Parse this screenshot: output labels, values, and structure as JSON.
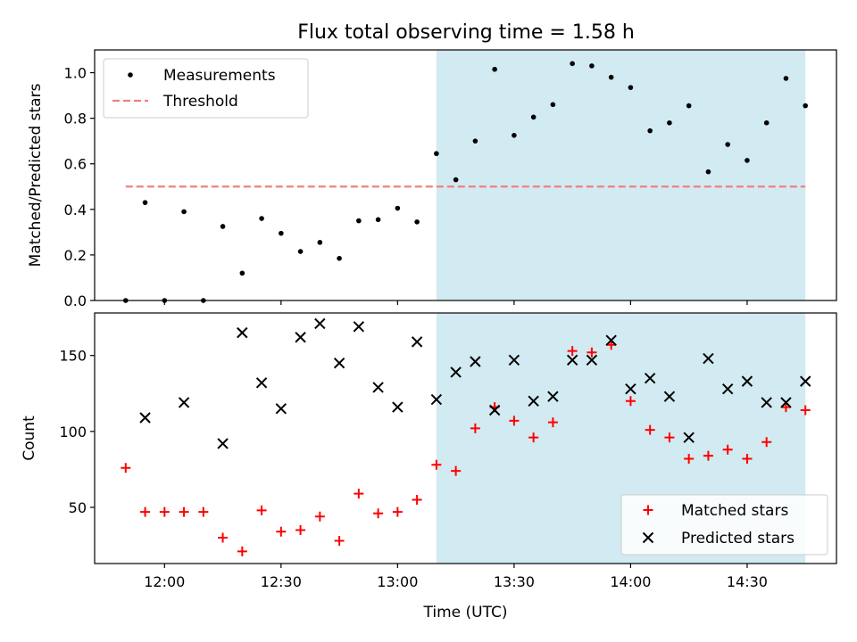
{
  "chart_data": [
    {
      "type": "scatter",
      "title": "Flux total observing time = 1.58 h",
      "xlabel": "",
      "ylabel": "Matched/Predicted stars",
      "ylim": [
        0,
        1.1
      ],
      "yticks": [
        0.0,
        0.2,
        0.4,
        0.6,
        0.8,
        1.0
      ],
      "ytick_labels": [
        "0.0",
        "0.2",
        "0.4",
        "0.6",
        "0.8",
        "1.0"
      ],
      "grid": false,
      "legend": "upper-left",
      "shaded_span": {
        "from": "13:10",
        "to": "14:45",
        "color": "#add8e6"
      },
      "threshold": {
        "name": "Threshold",
        "value": 0.5,
        "from": "11:50",
        "to": "14:45",
        "color": "#f08080",
        "style": "dashed"
      },
      "series": [
        {
          "name": "Measurements",
          "marker": "dot",
          "color": "#000000",
          "points": [
            [
              "11:50",
              0.0
            ],
            [
              "11:55",
              0.43
            ],
            [
              "12:00",
              0.0
            ],
            [
              "12:05",
              0.39
            ],
            [
              "12:10",
              0.0
            ],
            [
              "12:15",
              0.325
            ],
            [
              "12:20",
              0.12
            ],
            [
              "12:25",
              0.36
            ],
            [
              "12:30",
              0.295
            ],
            [
              "12:35",
              0.215
            ],
            [
              "12:40",
              0.255
            ],
            [
              "12:45",
              0.185
            ],
            [
              "12:50",
              0.35
            ],
            [
              "12:55",
              0.355
            ],
            [
              "13:00",
              0.405
            ],
            [
              "13:05",
              0.345
            ],
            [
              "13:10",
              0.645
            ],
            [
              "13:15",
              0.53
            ],
            [
              "13:20",
              0.7
            ],
            [
              "13:25",
              1.015
            ],
            [
              "13:30",
              0.725
            ],
            [
              "13:35",
              0.805
            ],
            [
              "13:40",
              0.86
            ],
            [
              "13:45",
              1.04
            ],
            [
              "13:50",
              1.03
            ],
            [
              "13:55",
              0.98
            ],
            [
              "14:00",
              0.935
            ],
            [
              "14:05",
              0.745
            ],
            [
              "14:10",
              0.78
            ],
            [
              "14:15",
              0.855
            ],
            [
              "14:20",
              0.565
            ],
            [
              "14:25",
              0.685
            ],
            [
              "14:30",
              0.615
            ],
            [
              "14:35",
              0.78
            ],
            [
              "14:40",
              0.975
            ],
            [
              "14:45",
              0.855
            ]
          ]
        }
      ]
    },
    {
      "type": "scatter",
      "title": "",
      "xlabel": "Time (UTC)",
      "ylabel": "Count",
      "ylim": [
        13,
        178
      ],
      "yticks": [
        50,
        100,
        150
      ],
      "ytick_labels": [
        "50",
        "100",
        "150"
      ],
      "xlim": [
        "11:42",
        "14:53"
      ],
      "xticks": [
        "12:00",
        "12:30",
        "13:00",
        "13:30",
        "14:00",
        "14:30"
      ],
      "xtick_labels": [
        "12:00",
        "12:30",
        "13:00",
        "13:30",
        "14:00",
        "14:30"
      ],
      "grid": false,
      "legend": "lower-right",
      "shaded_span": {
        "from": "13:10",
        "to": "14:45",
        "color": "#add8e6"
      },
      "series": [
        {
          "name": "Matched stars",
          "marker": "plus",
          "color": "#ff0000",
          "points": [
            [
              "11:50",
              76
            ],
            [
              "11:55",
              47
            ],
            [
              "12:00",
              47
            ],
            [
              "12:05",
              47
            ],
            [
              "12:10",
              47
            ],
            [
              "12:15",
              30
            ],
            [
              "12:20",
              21
            ],
            [
              "12:25",
              48
            ],
            [
              "12:30",
              34
            ],
            [
              "12:35",
              35
            ],
            [
              "12:40",
              44
            ],
            [
              "12:45",
              28
            ],
            [
              "12:50",
              59
            ],
            [
              "12:55",
              46
            ],
            [
              "13:00",
              47
            ],
            [
              "13:05",
              55
            ],
            [
              "13:10",
              78
            ],
            [
              "13:15",
              74
            ],
            [
              "13:20",
              102
            ],
            [
              "13:25",
              116
            ],
            [
              "13:30",
              107
            ],
            [
              "13:35",
              96
            ],
            [
              "13:40",
              106
            ],
            [
              "13:45",
              153
            ],
            [
              "13:50",
              152
            ],
            [
              "13:55",
              157
            ],
            [
              "14:00",
              120
            ],
            [
              "14:05",
              101
            ],
            [
              "14:10",
              96
            ],
            [
              "14:15",
              82
            ],
            [
              "14:20",
              84
            ],
            [
              "14:25",
              88
            ],
            [
              "14:30",
              82
            ],
            [
              "14:35",
              93
            ],
            [
              "14:40",
              116
            ],
            [
              "14:45",
              114
            ]
          ]
        },
        {
          "name": "Predicted stars",
          "marker": "x",
          "color": "#000000",
          "points": [
            [
              "11:55",
              109
            ],
            [
              "12:05",
              119
            ],
            [
              "12:15",
              92
            ],
            [
              "12:20",
              165
            ],
            [
              "12:25",
              132
            ],
            [
              "12:30",
              115
            ],
            [
              "12:35",
              162
            ],
            [
              "12:40",
              171
            ],
            [
              "12:45",
              145
            ],
            [
              "12:50",
              169
            ],
            [
              "12:55",
              129
            ],
            [
              "13:00",
              116
            ],
            [
              "13:05",
              159
            ],
            [
              "13:10",
              121
            ],
            [
              "13:15",
              139
            ],
            [
              "13:20",
              146
            ],
            [
              "13:25",
              114
            ],
            [
              "13:30",
              147
            ],
            [
              "13:35",
              120
            ],
            [
              "13:40",
              123
            ],
            [
              "13:45",
              147
            ],
            [
              "13:50",
              147
            ],
            [
              "13:55",
              160
            ],
            [
              "14:00",
              128
            ],
            [
              "14:05",
              135
            ],
            [
              "14:10",
              123
            ],
            [
              "14:15",
              96
            ],
            [
              "14:20",
              148
            ],
            [
              "14:25",
              128
            ],
            [
              "14:30",
              133
            ],
            [
              "14:35",
              119
            ],
            [
              "14:40",
              119
            ],
            [
              "14:45",
              133
            ]
          ]
        }
      ]
    }
  ]
}
